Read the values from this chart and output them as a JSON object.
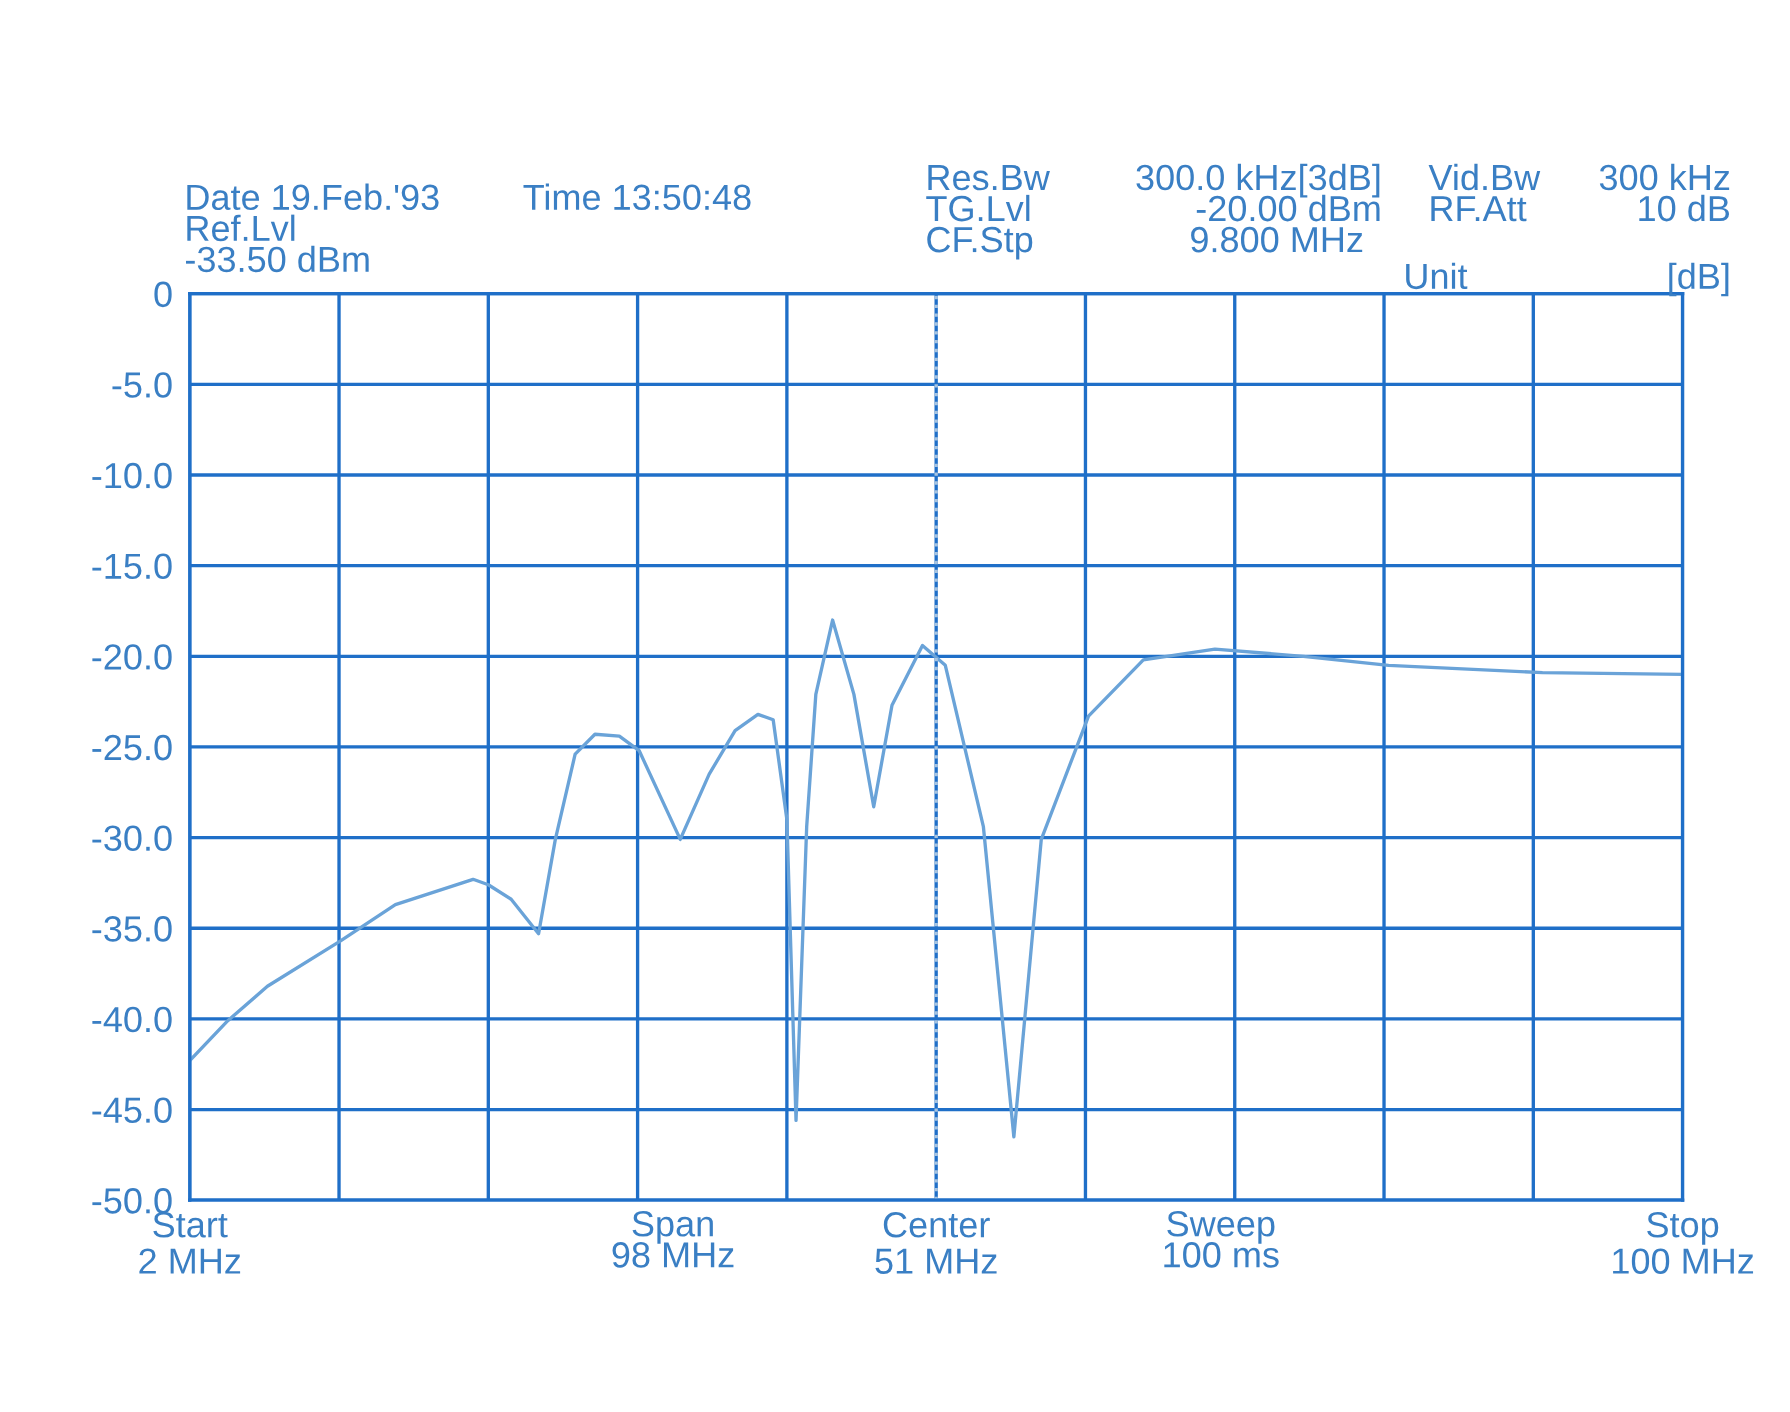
{
  "chart_data": {
    "type": "line",
    "annotations": [
      "Date 19.Feb.'93",
      "Time 13:50:48",
      "Ref.Lvl",
      "-33.50 dBm",
      "Res.Bw",
      "300.0 kHz[3dB]",
      "TG.Lvl",
      "-20.00 dBm",
      "CF.Stp",
      "9.800 MHz",
      "Vid.Bw",
      "300 kHz",
      "RF.Att",
      "10 dB",
      "Unit",
      "[dB]",
      "Span\n98 MHz",
      "Sweep\n100 ms",
      "Start",
      "Center",
      "Stop"
    ],
    "x": [
      2.0,
      4.5,
      7.1,
      11.9,
      15.5,
      20.6,
      21.6,
      23.1,
      24.9,
      26.0,
      27.3,
      28.6,
      30.2,
      31.5,
      34.2,
      36.1,
      37.8,
      39.3,
      40.3,
      41.2,
      41.8,
      42.5,
      43.1,
      44.2,
      45.6,
      46.9,
      48.1,
      50.1,
      51.6,
      54.1,
      56.1,
      57.9,
      61.0,
      64.6,
      69.3,
      75.1,
      80.7,
      90.8,
      100.0
    ],
    "series": [
      {
        "color": "#6aa3d8",
        "values": [
          -42.3,
          -40.1,
          -38.2,
          -35.7,
          -33.7,
          -32.3,
          -32.6,
          -33.4,
          -35.3,
          -30.1,
          -25.4,
          -24.3,
          -24.4,
          -25.2,
          -30.1,
          -26.5,
          -24.1,
          -23.2,
          -23.5,
          -29.0,
          -45.6,
          -29.4,
          -22.1,
          -18.0,
          -22.1,
          -28.3,
          -22.7,
          -19.4,
          -20.5,
          -29.4,
          -46.5,
          -30.1,
          -23.3,
          -20.2,
          -19.6,
          -20.0,
          -20.5,
          -20.9,
          -21.0
        ]
      }
    ],
    "xlim": [
      2,
      100
    ],
    "xticks": [
      {
        "value": 2,
        "label": "2 MHz"
      },
      {
        "value": 11.8,
        "label": null
      },
      {
        "value": 21.6,
        "label": null
      },
      {
        "value": 31.4,
        "label": null
      },
      {
        "value": 41.2,
        "label": null
      },
      {
        "value": 51,
        "label": "51 MHz"
      },
      {
        "value": 60.8,
        "label": null
      },
      {
        "value": 70.6,
        "label": null
      },
      {
        "value": 80.4,
        "label": null
      },
      {
        "value": 90.2,
        "label": null
      },
      {
        "value": 100,
        "label": "100 MHz"
      }
    ],
    "ylim": [
      -50,
      0
    ],
    "yticks": [
      0,
      {
        "value": -5,
        "label": "-5.0"
      },
      {
        "value": -10,
        "label": "-10.0"
      },
      {
        "value": -15,
        "label": "-15.0"
      },
      {
        "value": -20,
        "label": "-20.0"
      },
      {
        "value": -25,
        "label": "-25.0"
      },
      {
        "value": -30,
        "label": "-30.0"
      },
      {
        "value": -35,
        "label": "-35.0"
      },
      {
        "value": -40,
        "label": "-40.0"
      },
      {
        "value": -45,
        "label": "-45.0"
      },
      {
        "value": -50,
        "label": "-50.0"
      }
    ],
    "grid": true,
    "ref_lines": [
      {
        "axis": "x",
        "value": 51,
        "label": null,
        "color": "#a8c4e0",
        "line_style": "dotted"
      }
    ]
  }
}
